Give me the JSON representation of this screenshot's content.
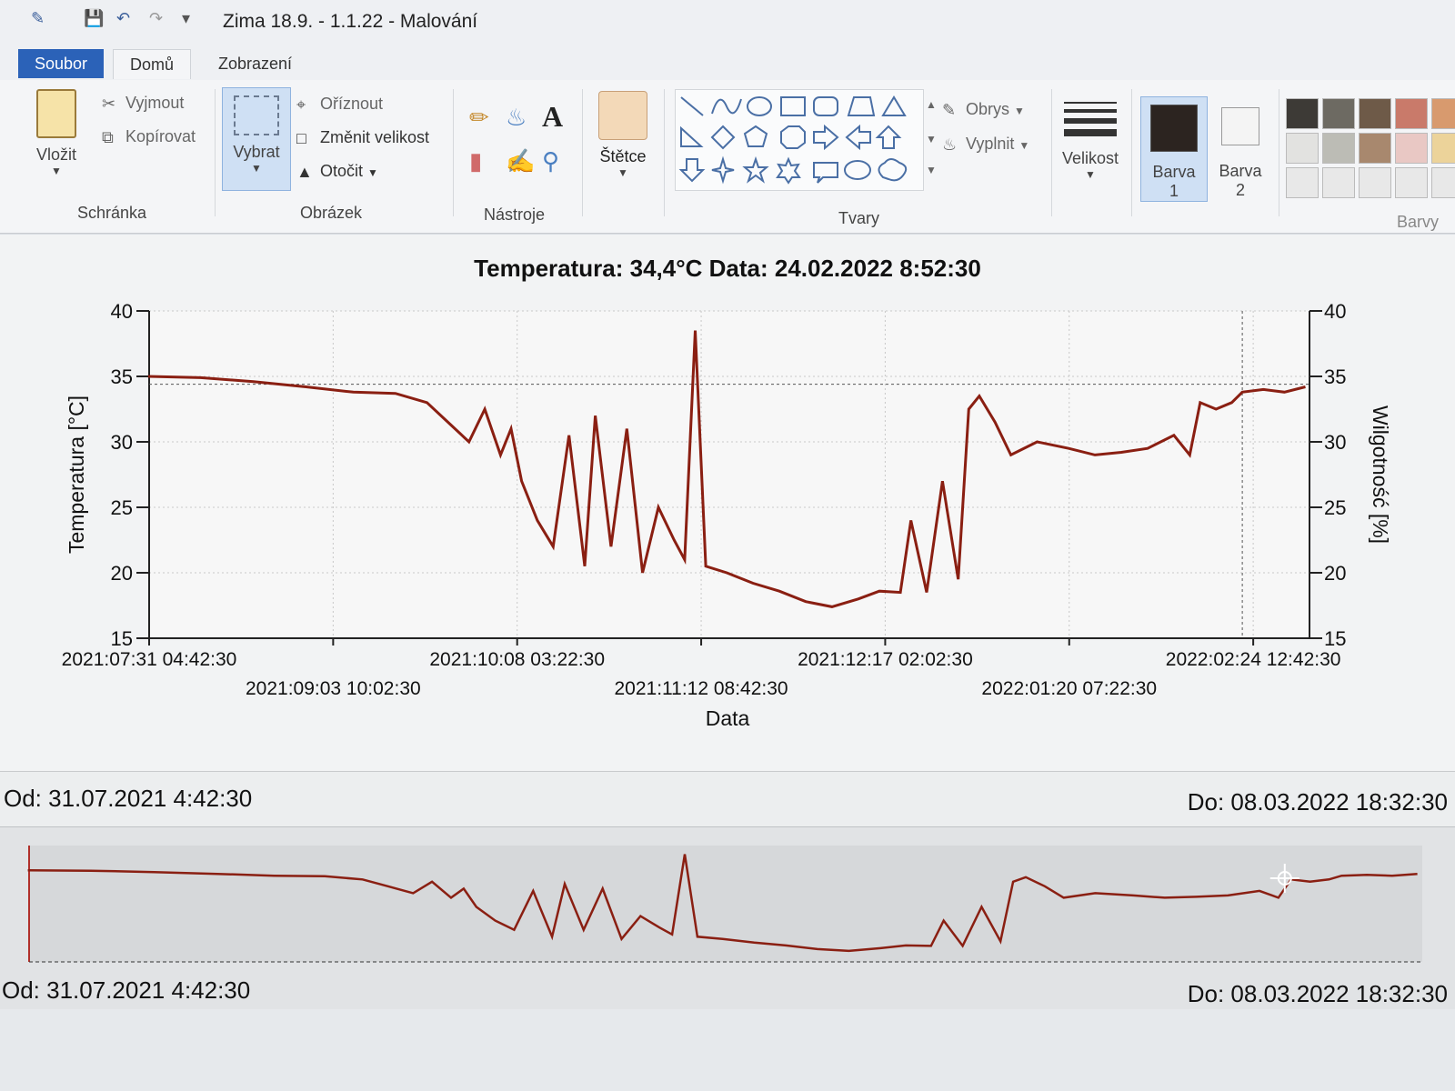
{
  "window": {
    "title": "Zima 18.9. - 1.1.22 - Malování"
  },
  "tabs": [
    "Soubor",
    "Domů",
    "Zobrazení"
  ],
  "ribbon": {
    "clipboard": {
      "paste": "Vložit",
      "cut": "Vyjmout",
      "copy": "Kopírovat",
      "group": "Schránka"
    },
    "image": {
      "select": "Vybrat",
      "crop": "Oříznout",
      "resize": "Změnit velikost",
      "rotate": "Otočit",
      "group": "Obrázek"
    },
    "tools": {
      "group": "Nástroje"
    },
    "brushes": {
      "label": "Štětce"
    },
    "shapes": {
      "outline": "Obrys",
      "fill": "Vyplnit",
      "group": "Tvary"
    },
    "size": {
      "label": "Velikost"
    },
    "color1": {
      "label": "Barva",
      "num": "1"
    },
    "color2": {
      "label": "Barva",
      "num": "2"
    },
    "colors": {
      "group": "Barvy",
      "palette": [
        "#3d3a36",
        "#6d6a62",
        "#6e5a48",
        "#c97a6a",
        "#d89a6e",
        "#e2e2e0",
        "#bcbcb5",
        "#a8886e",
        "#e9c8c4",
        "#ecd39a",
        "#e8e8e8",
        "#e8e8e8",
        "#e8e8e8",
        "#e8e8e8",
        "#e8e8e8"
      ]
    }
  },
  "chart": {
    "title": "Temperatura: 34,4°C  Data: 24.02.2022   8:52:30",
    "from_label": "Od: 31.07.2021 4:42:30",
    "to_label": "Do: 08.03.2022 18:32:30",
    "overview_from": "Od: 31.07.2021 4:42:30",
    "overview_to": "Do: 08.03.2022 18:32:30"
  },
  "chart_data": {
    "type": "line",
    "title": "Temperatura: 34,4°C  Data: 24.02.2022   8:52:30",
    "xlabel": "Data",
    "ylabel": "Temperatura [°C]",
    "y2label": "Wilgotność [%]",
    "ylim": [
      15,
      40
    ],
    "y2lim": [
      15,
      40
    ],
    "yticks": [
      15,
      20,
      25,
      30,
      35,
      40
    ],
    "y2ticks": [
      15,
      20,
      25,
      30,
      35,
      40
    ],
    "xticks": [
      "2021:07:31 04:42:30",
      "2021:09:03 10:02:30",
      "2021:10:08 03:22:30",
      "2021:11:12 08:42:30",
      "2021:12:17 02:02:30",
      "2022:01:20 07:22:30",
      "2022:02:24 12:42:30"
    ],
    "grid": true,
    "series": [
      {
        "name": "Temperatura",
        "color": "#8a1f12",
        "x": [
          "2021-07-31",
          "2021-08-10",
          "2021-08-20",
          "2021-08-30",
          "2021-09-08",
          "2021-09-16",
          "2021-09-22",
          "2021-09-26",
          "2021-09-30",
          "2021-10-03",
          "2021-10-06",
          "2021-10-08",
          "2021-10-10",
          "2021-10-13",
          "2021-10-16",
          "2021-10-19",
          "2021-10-22",
          "2021-10-24",
          "2021-10-27",
          "2021-10-30",
          "2021-11-02",
          "2021-11-05",
          "2021-11-08",
          "2021-11-10",
          "2021-11-12",
          "2021-11-14",
          "2021-11-18",
          "2021-11-23",
          "2021-11-28",
          "2021-12-03",
          "2021-12-08",
          "2021-12-13",
          "2021-12-17",
          "2021-12-21",
          "2021-12-23",
          "2021-12-26",
          "2021-12-29",
          "2022-01-01",
          "2022-01-03",
          "2022-01-05",
          "2022-01-08",
          "2022-01-11",
          "2022-01-16",
          "2022-01-22",
          "2022-01-27",
          "2022-02-01",
          "2022-02-06",
          "2022-02-11",
          "2022-02-14",
          "2022-02-16",
          "2022-02-19",
          "2022-02-22",
          "2022-02-24",
          "2022-02-28",
          "2022-03-04",
          "2022-03-08"
        ],
        "y": [
          35.0,
          34.9,
          34.6,
          34.2,
          33.8,
          33.7,
          33.0,
          31.5,
          30.0,
          32.5,
          29.0,
          31.0,
          27.0,
          24.0,
          22.0,
          30.5,
          20.5,
          32.0,
          22.0,
          31.0,
          20.0,
          25.0,
          22.5,
          21.0,
          38.5,
          20.5,
          20.0,
          19.2,
          18.6,
          17.8,
          17.4,
          18.0,
          18.6,
          18.5,
          24.0,
          18.5,
          27.0,
          19.5,
          32.5,
          33.5,
          31.5,
          29.0,
          30.0,
          29.5,
          29.0,
          29.2,
          29.5,
          30.5,
          29.0,
          33.0,
          32.5,
          33.0,
          33.8,
          34.0,
          33.8,
          34.2
        ]
      }
    ]
  }
}
